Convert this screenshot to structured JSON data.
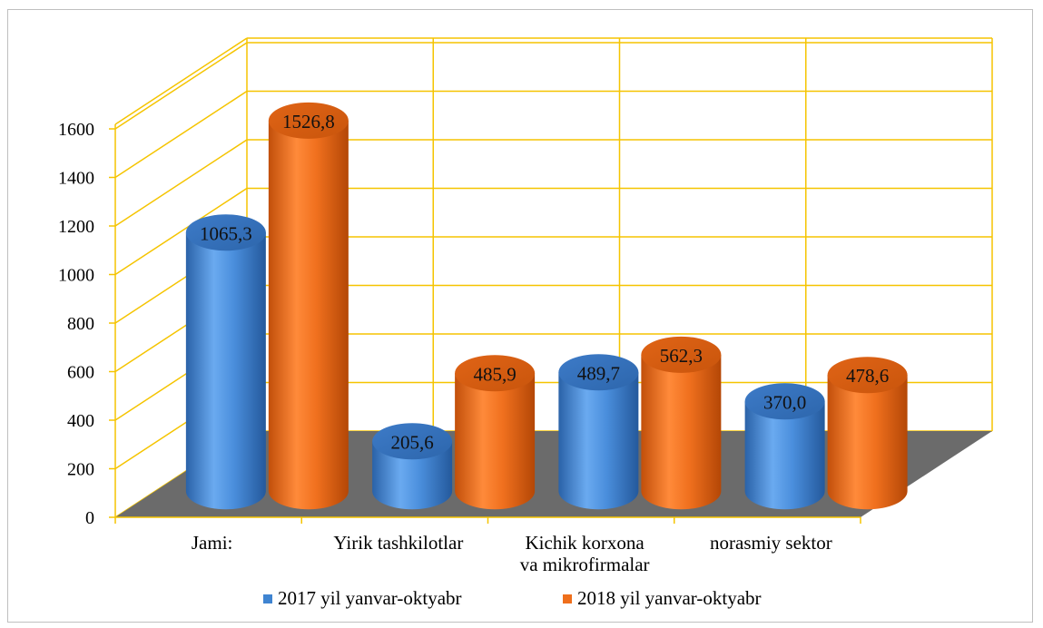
{
  "chart_data": {
    "type": "bar",
    "style": "3d-cylinder",
    "categories": [
      "Jami:",
      "Yirik tashkilotlar",
      "Kichik korxona va mikrofirmalar",
      "norasmiy sektor"
    ],
    "category_lines": [
      [
        "Jami:"
      ],
      [
        "Yirik tashkilotlar"
      ],
      [
        "Kichik korxona",
        "va mikrofirmalar"
      ],
      [
        "norasmiy sektor"
      ]
    ],
    "series": [
      {
        "name": "2017 yil yanvar-oktyabr",
        "color": "#3f84d1",
        "values": [
          1065.3,
          205.6,
          489.7,
          370.0
        ],
        "labels": [
          "1065,3",
          "205,6",
          "489,7",
          "370,0"
        ]
      },
      {
        "name": "2018 yil yanvar-oktyabr",
        "color": "#ef6f1c",
        "values": [
          1526.8,
          485.9,
          562.3,
          478.6
        ],
        "labels": [
          "1526,8",
          "485,9",
          "562,3",
          "478,6"
        ]
      }
    ],
    "yticks": [
      "0",
      "200",
      "400",
      "600",
      "800",
      "1000",
      "1200",
      "1400",
      "1600"
    ],
    "ylim": [
      0,
      1600
    ],
    "grid": true,
    "grid_color": "#f5c400",
    "floor_color": "#6b6b6b",
    "legend_position": "bottom"
  }
}
